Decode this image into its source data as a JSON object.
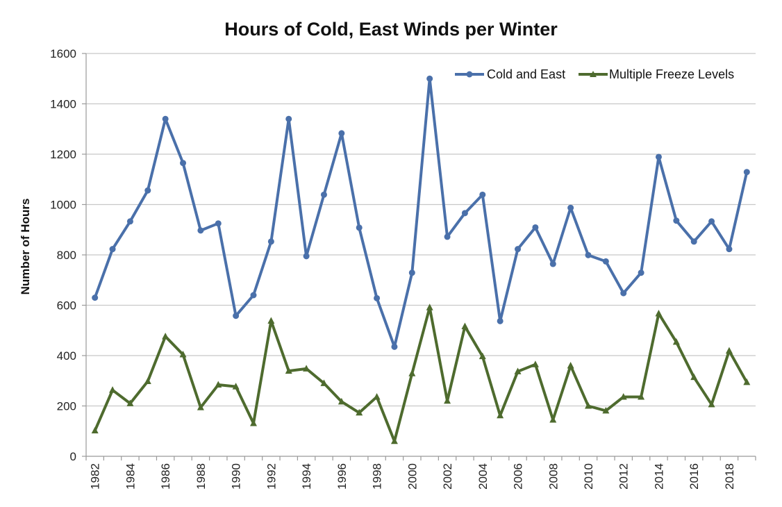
{
  "chart_data": {
    "type": "line",
    "title": "Hours of Cold, East Winds per Winter",
    "xlabel": "",
    "ylabel": "Number of Hours",
    "ylim": [
      0,
      1600
    ],
    "yticks": [
      "0",
      "200",
      "400",
      "600",
      "800",
      "1000",
      "1200",
      "1400",
      "1600"
    ],
    "x": [
      1982,
      1983,
      1984,
      1985,
      1986,
      1987,
      1988,
      1989,
      1990,
      1991,
      1992,
      1993,
      1994,
      1995,
      1996,
      1997,
      1998,
      1999,
      2000,
      2001,
      2002,
      2003,
      2004,
      2005,
      2006,
      2007,
      2008,
      2009,
      2010,
      2011,
      2012,
      2013,
      2014,
      2015,
      2016,
      2017,
      2018,
      2019
    ],
    "xticks": [
      "1982",
      "1984",
      "1986",
      "1988",
      "1990",
      "1992",
      "1994",
      "1996",
      "1998",
      "2000",
      "2002",
      "2004",
      "2006",
      "2008",
      "2010",
      "2012",
      "2014",
      "2016",
      "2018"
    ],
    "grid": true,
    "legend_position": "top-right",
    "series": [
      {
        "name": "Cold and East",
        "color": "#4a70aa",
        "marker": "circle",
        "values": [
          630,
          823,
          933,
          1056,
          1340,
          1165,
          897,
          925,
          558,
          640,
          853,
          1340,
          795,
          1039,
          1283,
          908,
          628,
          435,
          729,
          1500,
          872,
          966,
          1039,
          537,
          823,
          909,
          764,
          987,
          799,
          774,
          648,
          729,
          1189,
          936,
          853,
          933,
          823,
          1129
        ]
      },
      {
        "name": "Multiple Freeze Levels",
        "color": "#4e6b2e",
        "marker": "triangle",
        "values": [
          102,
          263,
          210,
          298,
          476,
          404,
          194,
          284,
          277,
          131,
          538,
          339,
          348,
          290,
          217,
          173,
          236,
          60,
          329,
          591,
          220,
          516,
          397,
          162,
          337,
          365,
          145,
          360,
          200,
          181,
          236,
          236,
          567,
          454,
          314,
          206,
          419,
          294
        ]
      }
    ]
  }
}
